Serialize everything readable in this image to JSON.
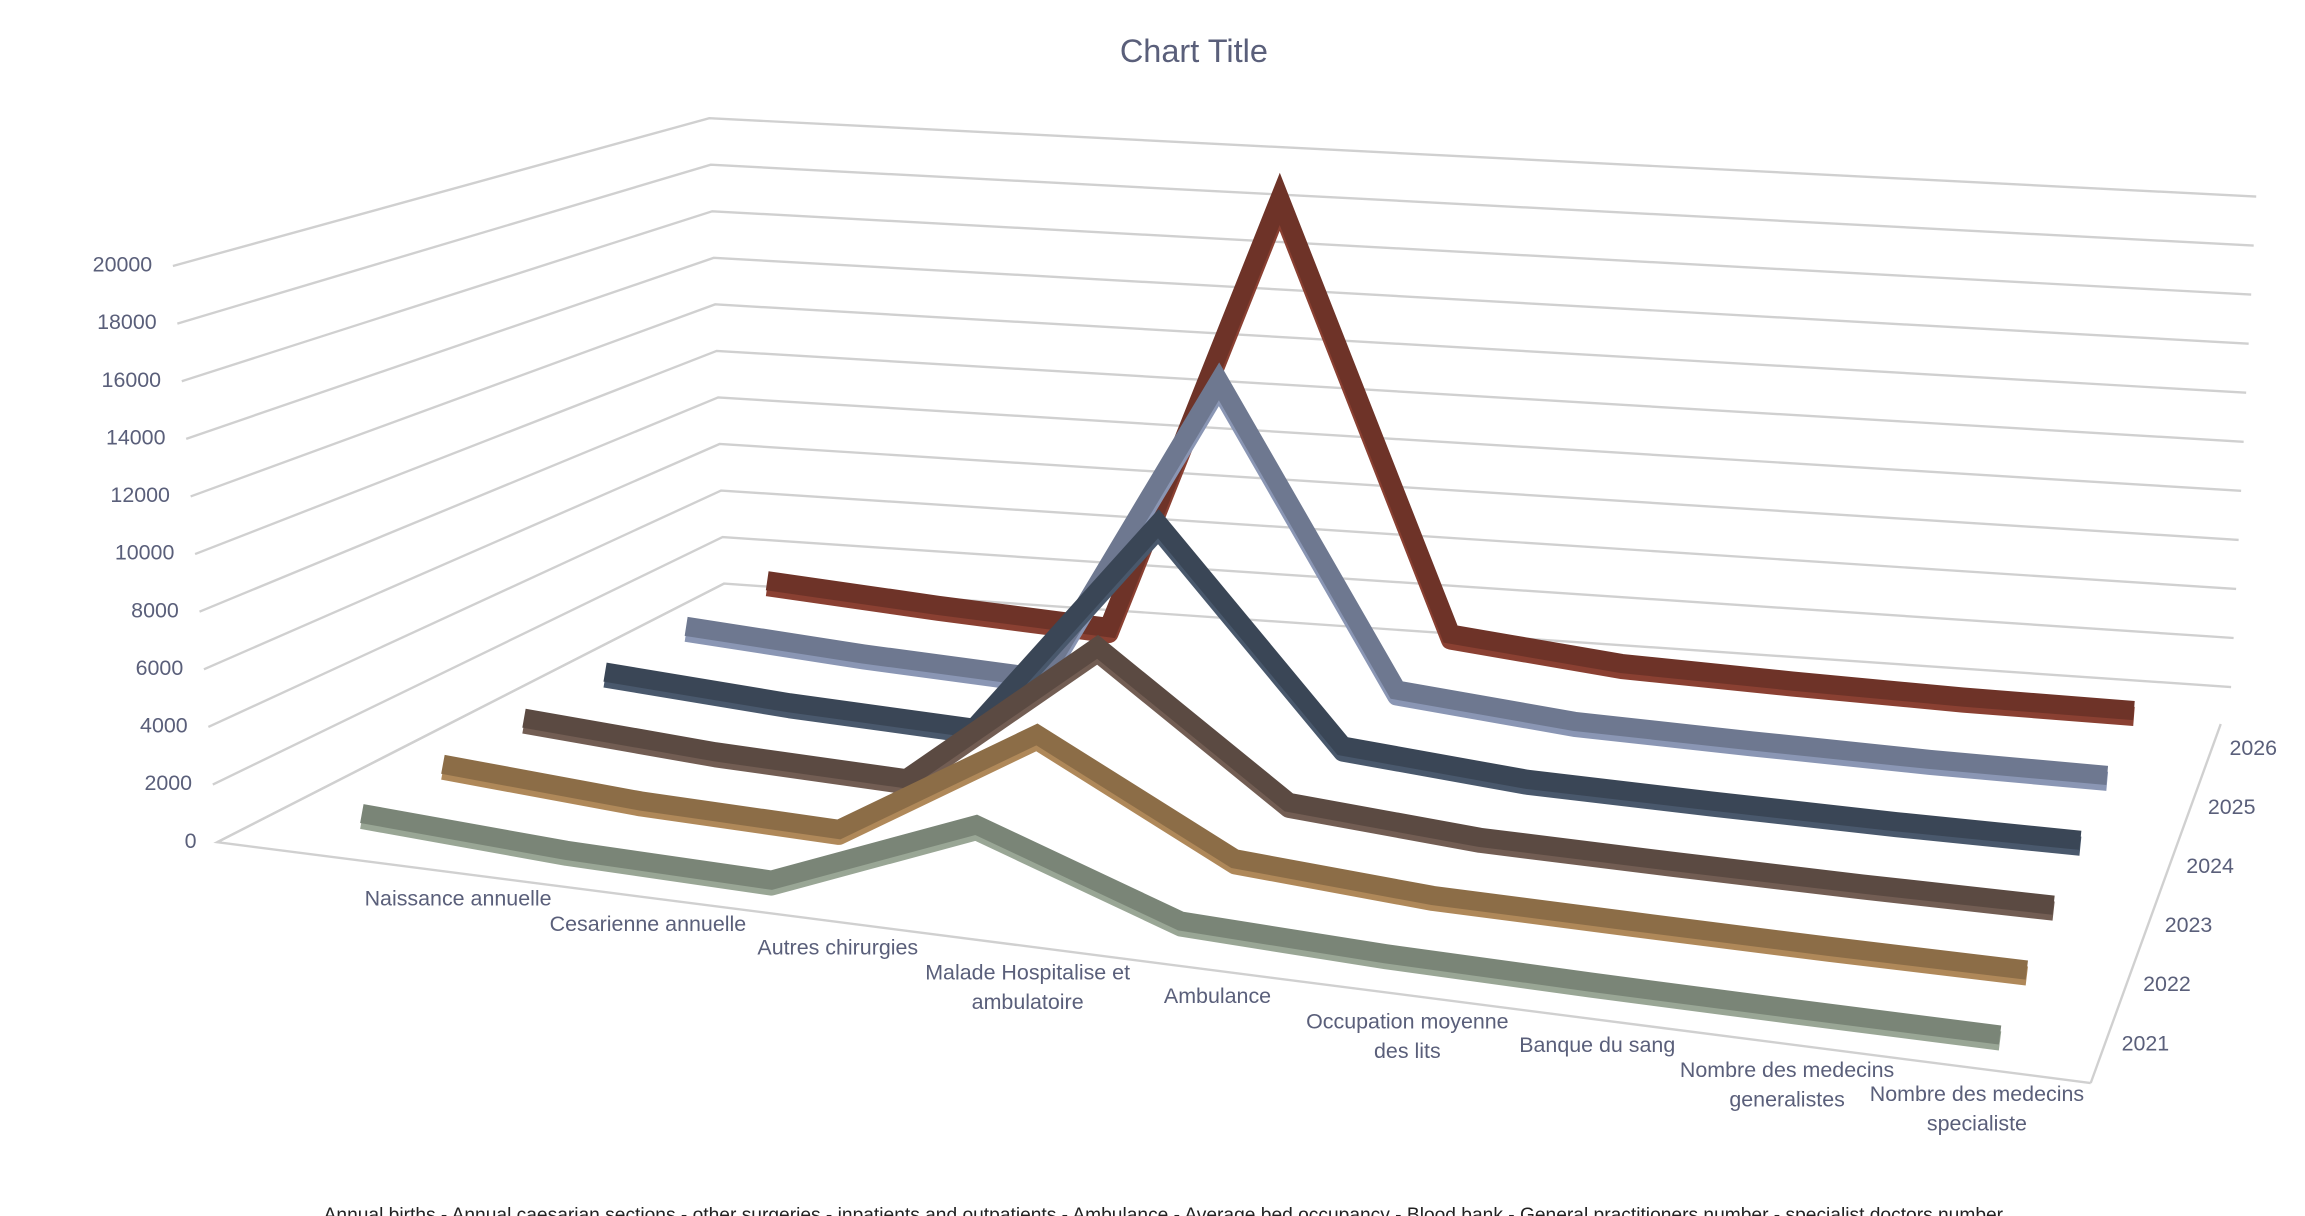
{
  "chart_data": {
    "type": "line",
    "title": "Chart Title",
    "note": "Annual births  -  Annual caesarian sections  -  other surgeries  -  inpatients and outpatients  -  Ambulance  - Average bed occupancy  -  Blood bank  -  General practitioners number  - specialist doctors number",
    "categories": [
      "Naissance annuelle",
      "Cesarienne annuelle",
      "Autres chirurgies",
      "Malade Hospitalise et ambulatoire",
      "Ambulance",
      "Occupation moyenne des lits",
      "Banque du sang",
      "Nombre des medecins generalistes",
      "Nombre des medecins specialiste"
    ],
    "series": [
      {
        "name": "2021",
        "color": "#7a8577",
        "values": [
          700,
          300,
          150,
          3000,
          500,
          250,
          150,
          100,
          80
        ]
      },
      {
        "name": "2022",
        "color": "#8c6d47",
        "values": [
          900,
          400,
          200,
          4500,
          800,
          300,
          200,
          120,
          90
        ]
      },
      {
        "name": "2023",
        "color": "#5b4a42",
        "values": [
          1000,
          500,
          250,
          6000,
          900,
          350,
          220,
          130,
          100
        ]
      },
      {
        "name": "2024",
        "color": "#3a4656",
        "values": [
          1100,
          600,
          300,
          9000,
          1000,
          400,
          250,
          140,
          110
        ]
      },
      {
        "name": "2025",
        "color": "#6e7890",
        "values": [
          1200,
          700,
          350,
          13000,
          1100,
          450,
          280,
          150,
          120
        ]
      },
      {
        "name": "2026",
        "color": "#6e3328",
        "values": [
          1300,
          800,
          400,
          19000,
          1200,
          500,
          300,
          160,
          130
        ]
      }
    ],
    "ylim": [
      0,
      20000
    ],
    "yticks": [
      0,
      2000,
      4000,
      6000,
      8000,
      10000,
      12000,
      14000,
      16000,
      18000,
      20000
    ],
    "grid": true
  }
}
